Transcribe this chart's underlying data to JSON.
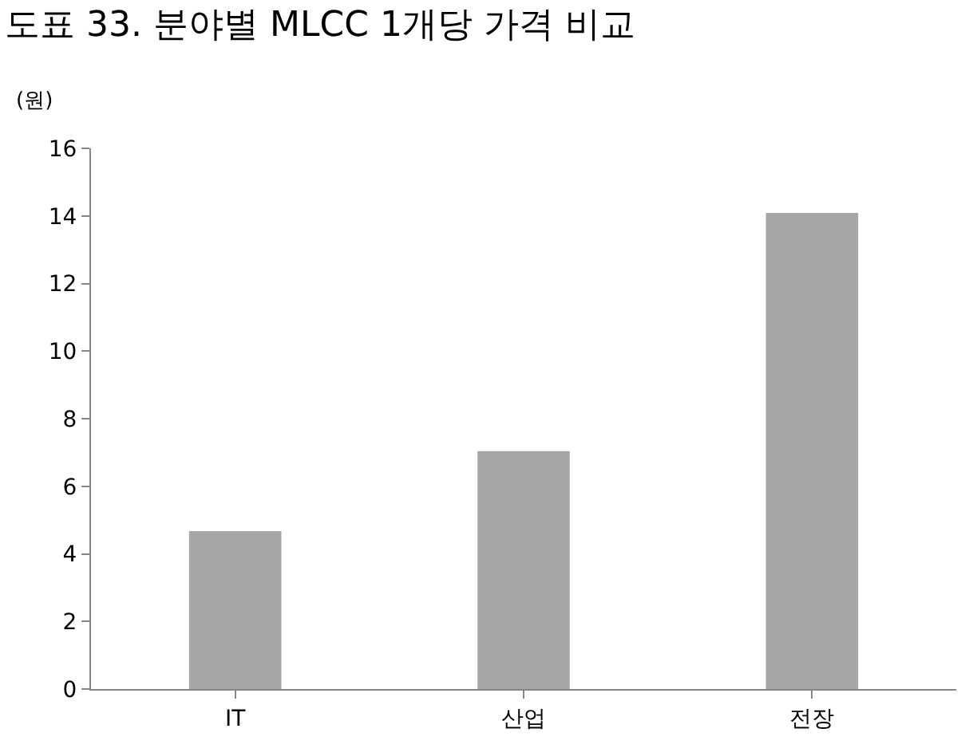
{
  "chart_data": {
    "type": "bar",
    "title": "도표 33. 분야별 MLCC 1개당 가격 비교",
    "ylabel": "(원)",
    "categories": [
      "IT",
      "산업",
      "전장"
    ],
    "values": [
      4.67,
      7.04,
      14.09
    ],
    "color": "#a6a6a6",
    "ylim": [
      0,
      16
    ],
    "yticks": [
      0,
      2,
      4,
      6,
      8,
      10,
      12,
      14,
      16
    ]
  }
}
